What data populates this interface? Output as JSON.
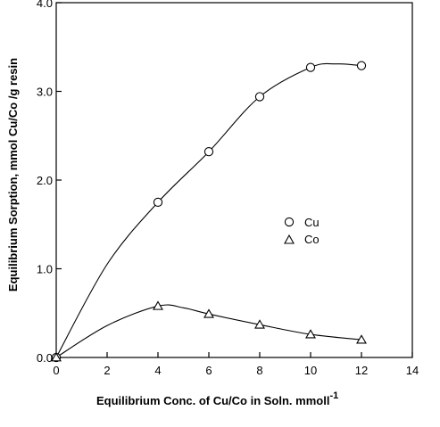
{
  "chart_data": {
    "type": "line",
    "title": "",
    "xlabel": "Equilibrium Conc. of Cu/Co in Soln. mmol",
    "xlabel_unit": "l",
    "xlabel_sup": "-1",
    "ylabel": "Equilibrium Sorption, mmol Cu/Co /g resin",
    "xlim": [
      0,
      14
    ],
    "ylim": [
      0,
      4.0
    ],
    "x_ticks": [
      "0",
      "2",
      "4",
      "6",
      "8",
      "10",
      "12",
      "14"
    ],
    "y_ticks": [
      "0.0",
      "1.0",
      "2.0",
      "3.0",
      "4.0"
    ],
    "grid": false,
    "legend_position": "center-right",
    "series": [
      {
        "name": "Cu",
        "marker": "circle",
        "x": [
          0,
          4,
          6,
          8,
          10,
          12
        ],
        "y": [
          0.0,
          1.75,
          2.32,
          2.94,
          3.27,
          3.29
        ],
        "curve": [
          [
            0,
            0
          ],
          [
            2,
            1.05
          ],
          [
            4,
            1.75
          ],
          [
            6,
            2.32
          ],
          [
            8,
            2.94
          ],
          [
            10,
            3.27
          ],
          [
            11,
            3.31
          ],
          [
            12,
            3.29
          ]
        ]
      },
      {
        "name": "Co",
        "marker": "triangle",
        "x": [
          0,
          4,
          6,
          8,
          10,
          12
        ],
        "y": [
          0.0,
          0.58,
          0.49,
          0.37,
          0.26,
          0.2
        ],
        "curve": [
          [
            0,
            0
          ],
          [
            2,
            0.36
          ],
          [
            4,
            0.58
          ],
          [
            5,
            0.56
          ],
          [
            6,
            0.49
          ],
          [
            8,
            0.37
          ],
          [
            10,
            0.26
          ],
          [
            12,
            0.2
          ]
        ]
      }
    ]
  }
}
